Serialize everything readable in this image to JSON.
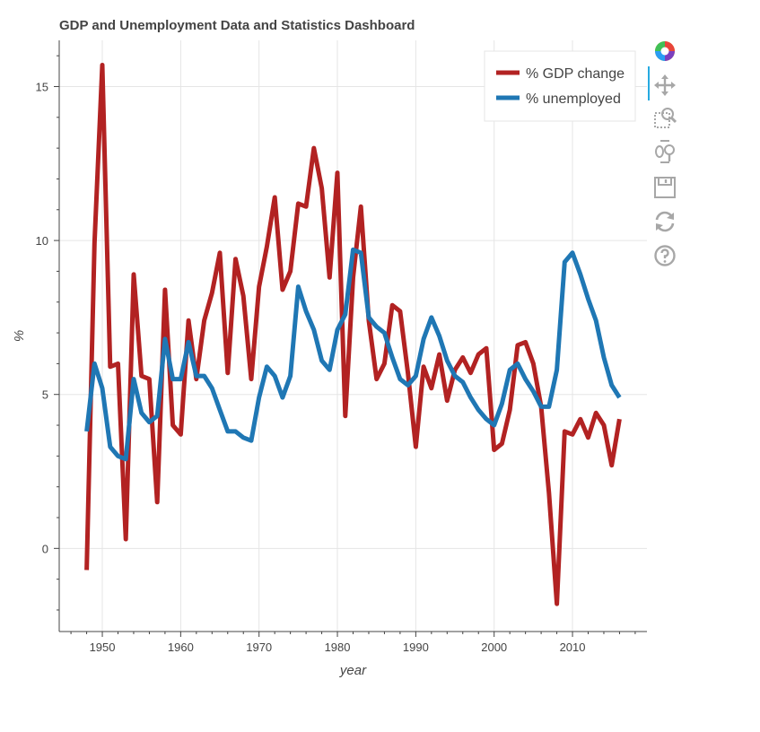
{
  "title": "GDP and Unemployment Data and Statistics Dashboard",
  "toolbar": {
    "active_color": "#26aae1",
    "tools": [
      "bokeh-logo-icon",
      "pan-icon",
      "box-zoom-icon",
      "wheel-zoom-icon",
      "save-icon",
      "reset-icon",
      "help-icon"
    ]
  },
  "chart_data": {
    "type": "line",
    "title": "GDP and Unemployment Data and Statistics Dashboard",
    "xlabel": "year",
    "ylabel": "%",
    "xlim": [
      1944.5,
      2019.5
    ],
    "ylim": [
      -2.7,
      16.5
    ],
    "xticks": [
      1950,
      1960,
      1970,
      1980,
      1990,
      2000,
      2010
    ],
    "xtick_labels": [
      "1950",
      "1960",
      "1970",
      "1980",
      "1990",
      "2000",
      "2010"
    ],
    "yticks": [
      0,
      5,
      10,
      15
    ],
    "ytick_labels": [
      "0",
      "5",
      "10",
      "15"
    ],
    "grid": true,
    "legend_position": "top-right",
    "x": [
      1948,
      1949,
      1950,
      1951,
      1952,
      1953,
      1954,
      1955,
      1956,
      1957,
      1958,
      1959,
      1960,
      1961,
      1962,
      1963,
      1964,
      1965,
      1966,
      1967,
      1968,
      1969,
      1970,
      1971,
      1972,
      1973,
      1974,
      1975,
      1976,
      1977,
      1978,
      1979,
      1980,
      1981,
      1982,
      1983,
      1984,
      1985,
      1986,
      1987,
      1988,
      1989,
      1990,
      1991,
      1992,
      1993,
      1994,
      1995,
      1996,
      1997,
      1998,
      1999,
      2000,
      2001,
      2002,
      2003,
      2004,
      2005,
      2006,
      2007,
      2008,
      2009,
      2010,
      2011,
      2012,
      2013,
      2014,
      2015,
      2016
    ],
    "series": [
      {
        "name": "% GDP change",
        "color": "#b22222",
        "values": [
          -0.7,
          9.9,
          15.7,
          5.9,
          6.0,
          0.3,
          8.9,
          5.6,
          5.5,
          1.5,
          8.4,
          4.0,
          3.7,
          7.4,
          5.5,
          7.4,
          8.3,
          9.6,
          5.7,
          9.4,
          8.2,
          5.5,
          8.5,
          9.8,
          11.4,
          8.4,
          9.0,
          11.2,
          11.1,
          13.0,
          11.7,
          8.8,
          12.2,
          4.3,
          8.8,
          11.1,
          7.4,
          5.5,
          6.0,
          7.9,
          7.7,
          5.7,
          3.3,
          5.9,
          5.2,
          6.3,
          4.8,
          5.8,
          6.2,
          5.7,
          6.3,
          6.5,
          3.2,
          3.4,
          4.5,
          6.6,
          6.7,
          6.0,
          4.6,
          1.8,
          -1.8,
          3.8,
          3.7,
          4.2,
          3.6,
          4.4,
          4.0,
          2.7,
          4.2
        ]
      },
      {
        "name": "% unemployed",
        "color": "#1f77b4",
        "values": [
          3.8,
          6.0,
          5.2,
          3.3,
          3.0,
          2.9,
          5.5,
          4.4,
          4.1,
          4.3,
          6.8,
          5.5,
          5.5,
          6.7,
          5.6,
          5.6,
          5.2,
          4.5,
          3.8,
          3.8,
          3.6,
          3.5,
          4.9,
          5.9,
          5.6,
          4.9,
          5.6,
          8.5,
          7.7,
          7.1,
          6.1,
          5.8,
          7.1,
          7.6,
          9.7,
          9.6,
          7.5,
          7.2,
          7.0,
          6.2,
          5.5,
          5.3,
          5.6,
          6.8,
          7.5,
          6.9,
          6.1,
          5.6,
          5.4,
          4.9,
          4.5,
          4.2,
          4.0,
          4.7,
          5.8,
          6.0,
          5.5,
          5.1,
          4.6,
          4.6,
          5.8,
          9.3,
          9.6,
          8.9,
          8.1,
          7.4,
          6.2,
          5.3,
          4.9
        ]
      }
    ]
  }
}
